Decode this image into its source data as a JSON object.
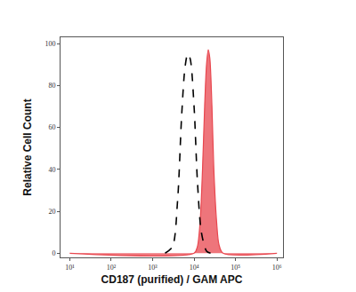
{
  "chart_data": {
    "type": "line",
    "x_label": "CD187 (purified) / GAM APC",
    "y_label": "Relative Cell Count",
    "log": "x",
    "grid": false,
    "xlim": [
      6,
      1400000
    ],
    "ylim": [
      -2,
      103
    ],
    "xticks": [
      {
        "value": 10,
        "label": "10¹"
      },
      {
        "value": 100,
        "label": "10²"
      },
      {
        "value": 1000,
        "label": "10³"
      },
      {
        "value": 10000,
        "label": "10⁴"
      },
      {
        "value": 100000,
        "label": "10⁵"
      },
      {
        "value": 1000000,
        "label": "10⁶"
      }
    ],
    "yticks": [
      0,
      20,
      40,
      60,
      80,
      100
    ],
    "series": [
      {
        "type": "line",
        "color": "#000000",
        "line_style": "dashed",
        "x": [
          2000,
          3000,
          4000,
          5000,
          6000,
          7000,
          8000,
          10000,
          12000,
          15000,
          20000,
          25000
        ],
        "values": [
          0,
          3,
          25,
          65,
          88,
          95,
          93,
          70,
          35,
          10,
          1,
          0
        ]
      },
      {
        "type": "area",
        "color": "#e8474f",
        "line_style": "solid",
        "x": [
          10,
          10000,
          12000,
          14000,
          16000,
          18000,
          20000,
          22000,
          24000,
          27000,
          30000,
          35000,
          40000,
          50000,
          1000000
        ],
        "values": [
          0,
          0,
          3,
          15,
          40,
          70,
          90,
          97,
          93,
          70,
          40,
          15,
          4,
          0,
          0
        ]
      }
    ]
  }
}
